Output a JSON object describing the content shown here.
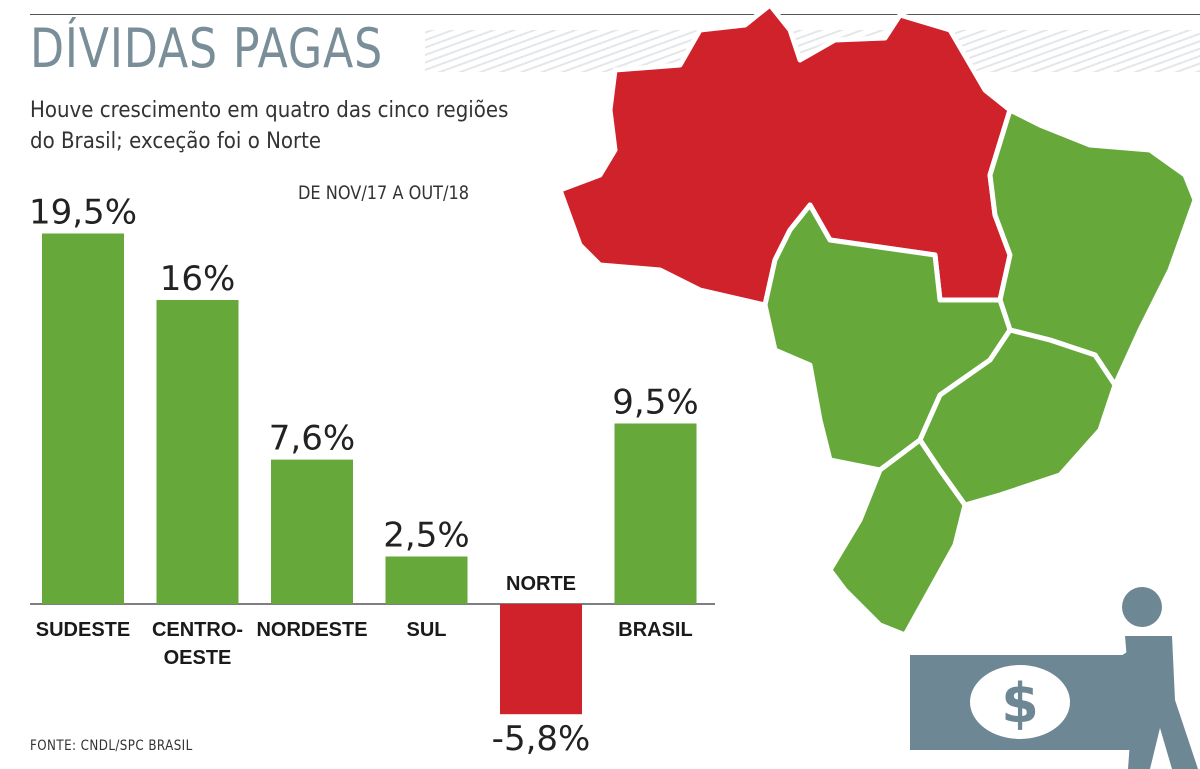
{
  "title": "DÍVIDAS PAGAS",
  "subtitle_lines": [
    "Houve crescimento em quatro das cinco regiões",
    "do Brasil; exceção foi o Norte"
  ],
  "period": "DE NOV/17 A OUT/18",
  "source": "FONTE: CNDL/SPC BRASIL",
  "colors": {
    "positive": "#66a83a",
    "negative": "#d0222b",
    "title": "#7a8e9a",
    "icon": "#6e8795"
  },
  "chart_data": {
    "type": "bar",
    "title": "DÍVIDAS PAGAS",
    "subtitle": "Houve crescimento em quatro das cinco regiões do Brasil; exceção foi o Norte",
    "categories": [
      {
        "lines": [
          "SUDESTE"
        ]
      },
      {
        "lines": [
          "CENTRO-",
          "OESTE"
        ]
      },
      {
        "lines": [
          "NORDESTE"
        ]
      },
      {
        "lines": [
          "SUL"
        ]
      },
      {
        "lines": [
          "NORTE"
        ]
      },
      {
        "lines": [
          "BRASIL"
        ]
      }
    ],
    "values": [
      19.5,
      16,
      7.6,
      2.5,
      -5.8,
      9.5
    ],
    "value_labels": [
      "19,5%",
      "16%",
      "7,6%",
      "2,5%",
      "-5,8%",
      "9,5%"
    ],
    "xlabel": "",
    "ylabel": "",
    "grid": false,
    "legend": "none"
  },
  "map": {
    "regions": [
      {
        "name": "Norte",
        "status": "negative"
      },
      {
        "name": "Nordeste",
        "status": "positive"
      },
      {
        "name": "Centro-Oeste",
        "status": "positive"
      },
      {
        "name": "Sudeste",
        "status": "positive"
      },
      {
        "name": "Sul",
        "status": "positive"
      }
    ]
  },
  "illustration": {
    "icon": "person-pushing-banknote-icon",
    "symbol": "$"
  }
}
